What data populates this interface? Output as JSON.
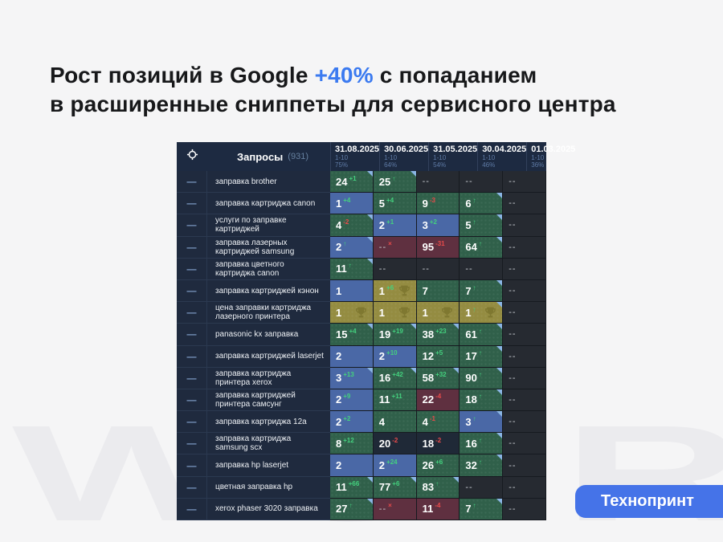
{
  "title": {
    "line1_pre": "Рост позиций в Google ",
    "highlight": "+40%",
    "line1_post": " с попаданием",
    "line2": "в расширенные сниппеты для сервисного центра",
    "accent_color": "#3b7af0"
  },
  "watermark": {
    "letters": [
      "W",
      "U",
      "R"
    ]
  },
  "cta": {
    "label": "Технопринт",
    "color": "#4573e8"
  },
  "table": {
    "queries_label": "Запросы",
    "queries_count": "(931)",
    "date_columns": [
      {
        "date": "31.08.2025",
        "range": "1-10",
        "percent": "75%"
      },
      {
        "date": "30.06.2025",
        "range": "1-10",
        "percent": "64%"
      },
      {
        "date": "31.05.2025",
        "range": "1-10",
        "percent": "54%"
      },
      {
        "date": "30.04.2025",
        "range": "1-10",
        "percent": "46%"
      },
      {
        "date": "01.03.2025",
        "range": "1-10",
        "percent": "36%"
      }
    ],
    "status_colors": {
      "improved_cell": "#30604a",
      "top_cell": "#4a68a6",
      "first_place_cell": "#948c41",
      "dropped_cell": "#5f3040",
      "sup_up": "#44d17e",
      "sup_down": "#e84b4b"
    },
    "rows": [
      {
        "query": "заправка brother",
        "cells": [
          {
            "v": "24",
            "sup": "+1",
            "supColor": "green",
            "bg": "green",
            "mark": true
          },
          {
            "v": "25",
            "sup": "↑",
            "supColor": "green",
            "bg": "green",
            "mark": true
          },
          {
            "v": "--",
            "bg": "dark"
          },
          {
            "v": "--",
            "bg": "dark"
          },
          {
            "v": "--",
            "bg": "dark"
          }
        ]
      },
      {
        "query": "заправка картриджа canon",
        "cells": [
          {
            "v": "1",
            "sup": "+4",
            "supColor": "green",
            "bg": "blue"
          },
          {
            "v": "5",
            "sup": "+4",
            "supColor": "green",
            "bg": "green"
          },
          {
            "v": "9",
            "sup": "-3",
            "supColor": "red",
            "bg": "green"
          },
          {
            "v": "6",
            "sup": "↑",
            "supColor": "green",
            "bg": "green",
            "mark": true
          },
          {
            "v": "--",
            "bg": "dark"
          }
        ]
      },
      {
        "query": "услуги по заправке картриджей",
        "cells": [
          {
            "v": "4",
            "sup": "-2",
            "supColor": "red",
            "bg": "green",
            "mark": true
          },
          {
            "v": "2",
            "sup": "+1",
            "supColor": "green",
            "bg": "blue"
          },
          {
            "v": "3",
            "sup": "+2",
            "supColor": "green",
            "bg": "blue"
          },
          {
            "v": "5",
            "sup": "↑",
            "supColor": "green",
            "bg": "green",
            "mark": true
          },
          {
            "v": "--",
            "bg": "dark"
          }
        ]
      },
      {
        "query": "заправка лазерных картриджей samsung",
        "cells": [
          {
            "v": "2",
            "sup": "↑",
            "supColor": "green",
            "bg": "blue",
            "mark": true
          },
          {
            "v": "--",
            "sup": "×",
            "supColor": "red",
            "bg": "red"
          },
          {
            "v": "95",
            "sup": "-31",
            "supColor": "red",
            "bg": "red"
          },
          {
            "v": "64",
            "sup": "↑",
            "supColor": "green",
            "bg": "green",
            "mark": true
          },
          {
            "v": "--",
            "bg": "dark"
          }
        ]
      },
      {
        "query": "заправка цветного картриджа canon",
        "cells": [
          {
            "v": "11",
            "sup": "↑",
            "supColor": "green",
            "bg": "green",
            "mark": true
          },
          {
            "v": "--",
            "bg": "dark"
          },
          {
            "v": "--",
            "bg": "dark"
          },
          {
            "v": "--",
            "bg": "dark"
          },
          {
            "v": "--",
            "bg": "dark"
          }
        ]
      },
      {
        "query": "заправка картриджей кэнон",
        "cells": [
          {
            "v": "1",
            "bg": "blue"
          },
          {
            "v": "1",
            "sup": "+6",
            "supColor": "green",
            "bg": "gold",
            "trophy": true
          },
          {
            "v": "7",
            "bg": "green"
          },
          {
            "v": "7",
            "sup": "↑",
            "supColor": "green",
            "bg": "green",
            "mark": true
          },
          {
            "v": "--",
            "bg": "dark"
          }
        ]
      },
      {
        "query": "цена заправки картриджа лазерного принтера",
        "cells": [
          {
            "v": "1",
            "bg": "gold",
            "trophy": true
          },
          {
            "v": "1",
            "bg": "gold",
            "trophy": true
          },
          {
            "v": "1",
            "bg": "gold",
            "trophy": true
          },
          {
            "v": "1",
            "sup": "↑",
            "supColor": "green",
            "bg": "gold",
            "trophy": true,
            "mark": true
          },
          {
            "v": "--",
            "bg": "dark"
          }
        ]
      },
      {
        "query": "panasonic kx заправка",
        "cells": [
          {
            "v": "15",
            "sup": "+4",
            "supColor": "green",
            "bg": "green",
            "mark": true
          },
          {
            "v": "19",
            "sup": "+19",
            "supColor": "green",
            "bg": "green",
            "mark": true
          },
          {
            "v": "38",
            "sup": "+23",
            "supColor": "green",
            "bg": "green",
            "mark": true
          },
          {
            "v": "61",
            "sup": "↑",
            "supColor": "green",
            "bg": "green",
            "mark": true
          },
          {
            "v": "--",
            "bg": "dark"
          }
        ]
      },
      {
        "query": "заправка картриджей laserjet",
        "cells": [
          {
            "v": "2",
            "bg": "blue"
          },
          {
            "v": "2",
            "sup": "+10",
            "supColor": "green",
            "bg": "blue"
          },
          {
            "v": "12",
            "sup": "+5",
            "supColor": "green",
            "bg": "green"
          },
          {
            "v": "17",
            "sup": "↑",
            "supColor": "green",
            "bg": "green",
            "mark": true
          },
          {
            "v": "--",
            "bg": "dark"
          }
        ]
      },
      {
        "query": "заправка картриджа принтера xerox",
        "cells": [
          {
            "v": "3",
            "sup": "+13",
            "supColor": "green",
            "bg": "blue",
            "mark": true
          },
          {
            "v": "16",
            "sup": "+42",
            "supColor": "green",
            "bg": "green",
            "mark": true
          },
          {
            "v": "58",
            "sup": "+32",
            "supColor": "green",
            "bg": "green",
            "mark": true
          },
          {
            "v": "90",
            "sup": "↑",
            "supColor": "green",
            "bg": "green",
            "mark": true
          },
          {
            "v": "--",
            "bg": "dark"
          }
        ]
      },
      {
        "query": "заправка картриджей принтера самсунг",
        "cells": [
          {
            "v": "2",
            "sup": "+9",
            "supColor": "green",
            "bg": "blue"
          },
          {
            "v": "11",
            "sup": "+11",
            "supColor": "green",
            "bg": "green"
          },
          {
            "v": "22",
            "sup": "-4",
            "supColor": "red",
            "bg": "red"
          },
          {
            "v": "18",
            "sup": "↑",
            "supColor": "green",
            "bg": "green",
            "mark": true
          },
          {
            "v": "--",
            "bg": "dark"
          }
        ]
      },
      {
        "query": "заправка картриджа 12a",
        "cells": [
          {
            "v": "2",
            "sup": "+2",
            "supColor": "green",
            "bg": "blue"
          },
          {
            "v": "4",
            "bg": "green"
          },
          {
            "v": "4",
            "sup": "-1",
            "supColor": "red",
            "bg": "green"
          },
          {
            "v": "3",
            "sup": "↑",
            "supColor": "green",
            "bg": "blue",
            "mark": true
          },
          {
            "v": "--",
            "bg": "dark"
          }
        ]
      },
      {
        "query": "заправка картриджа samsung scx",
        "cells": [
          {
            "v": "8",
            "sup": "+12",
            "supColor": "green",
            "bg": "green"
          },
          {
            "v": "20",
            "sup": "-2",
            "supColor": "red",
            "bg": "navy"
          },
          {
            "v": "18",
            "sup": "-2",
            "supColor": "red",
            "bg": "navy"
          },
          {
            "v": "16",
            "sup": "↑",
            "supColor": "green",
            "bg": "green",
            "mark": true
          },
          {
            "v": "--",
            "bg": "dark"
          }
        ]
      },
      {
        "query": "заправка hp laserjet",
        "cells": [
          {
            "v": "2",
            "bg": "blue"
          },
          {
            "v": "2",
            "sup": "+24",
            "supColor": "green",
            "bg": "blue"
          },
          {
            "v": "26",
            "sup": "+6",
            "supColor": "green",
            "bg": "green"
          },
          {
            "v": "32",
            "sup": "↑",
            "supColor": "green",
            "bg": "green",
            "mark": true
          },
          {
            "v": "--",
            "bg": "dark"
          }
        ]
      },
      {
        "query": "цветная заправка hp",
        "cells": [
          {
            "v": "11",
            "sup": "+66",
            "supColor": "green",
            "bg": "green",
            "mark": true
          },
          {
            "v": "77",
            "sup": "+6",
            "supColor": "green",
            "bg": "green",
            "mark": true
          },
          {
            "v": "83",
            "sup": "↑",
            "supColor": "green",
            "bg": "green",
            "mark": true
          },
          {
            "v": "--",
            "bg": "dark"
          },
          {
            "v": "--",
            "bg": "dark"
          }
        ]
      },
      {
        "query": "xerox phaser 3020 заправка",
        "cells": [
          {
            "v": "27",
            "sup": "↑",
            "supColor": "green",
            "bg": "green",
            "mark": true
          },
          {
            "v": "--",
            "sup": "×",
            "supColor": "red",
            "bg": "red"
          },
          {
            "v": "11",
            "sup": "-4",
            "supColor": "red",
            "bg": "red"
          },
          {
            "v": "7",
            "sup": "↑",
            "supColor": "green",
            "bg": "green",
            "mark": true
          },
          {
            "v": "--",
            "bg": "dark"
          }
        ]
      }
    ]
  }
}
